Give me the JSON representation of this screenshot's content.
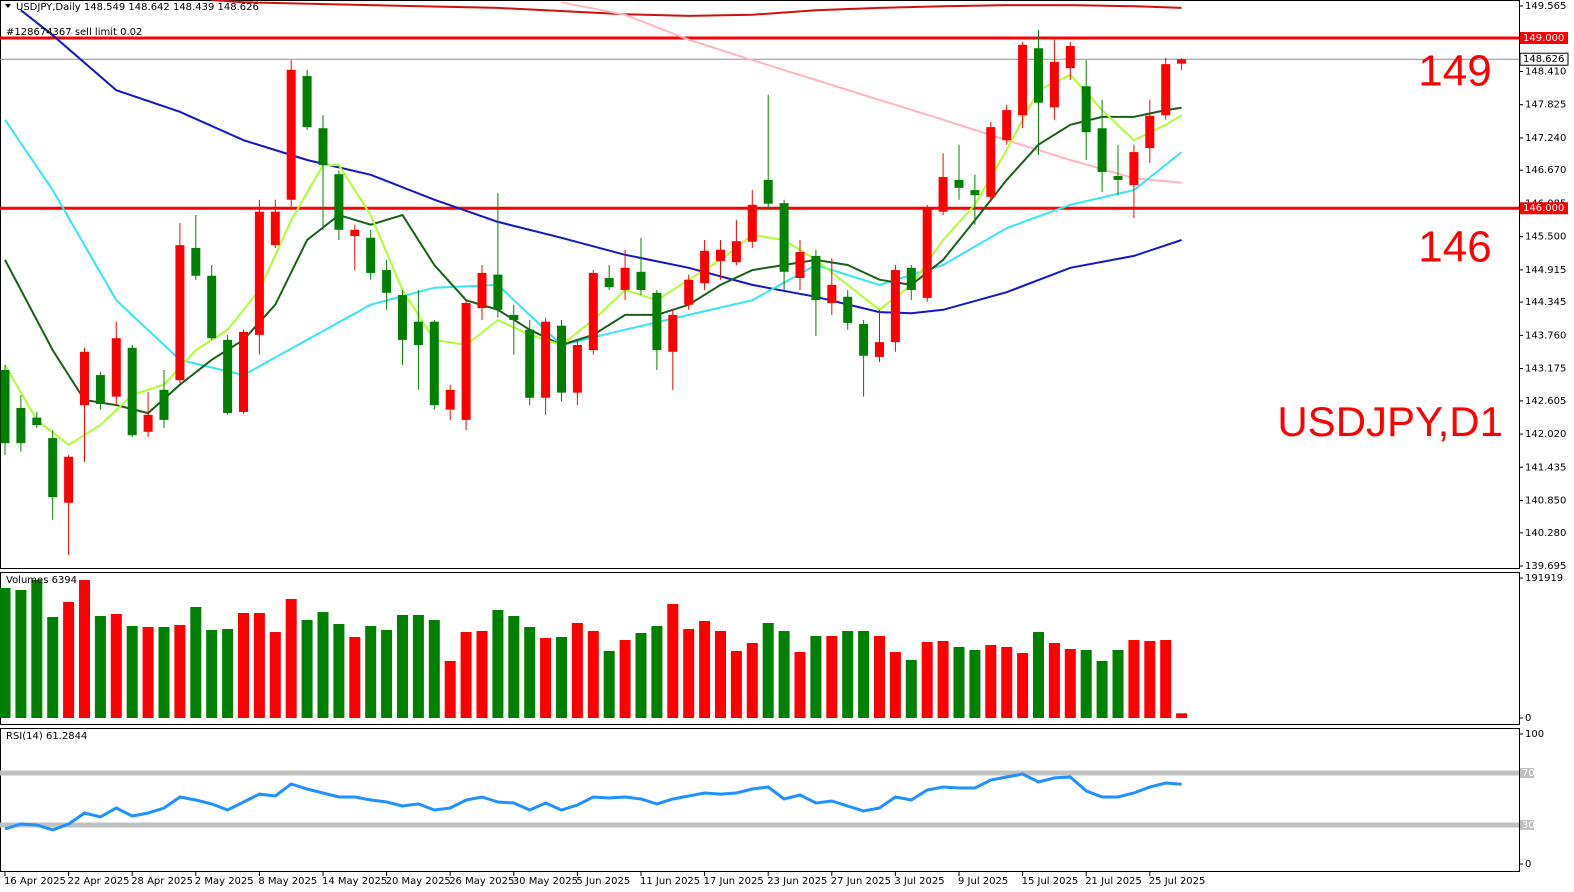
{
  "chart_data": [
    {
      "type": "candlestick",
      "title": "USDJPY,Daily  148.549 148.642 148.439 148.626",
      "order_label": "#128674367 sell limit 0.02",
      "annotations": [
        "149",
        "146",
        "USDJPY,D1"
      ],
      "categories": [
        "16 Apr 2025",
        null,
        null,
        null,
        "22 Apr 2025",
        null,
        null,
        null,
        "28 Apr 2025",
        null,
        null,
        null,
        "2 May 2025",
        null,
        null,
        null,
        "8 May 2025",
        null,
        null,
        null,
        "14 May 2025",
        null,
        null,
        null,
        "20 May 2025",
        null,
        null,
        null,
        "26 May 2025",
        null,
        null,
        null,
        "30 May 2025",
        null,
        null,
        null,
        "5 Jun 2025",
        null,
        null,
        null,
        "11 Jun 2025",
        null,
        null,
        null,
        "17 Jun 2025",
        null,
        null,
        null,
        "23 Jun 2025",
        null,
        null,
        null,
        "27 Jun 2025",
        null,
        null,
        null,
        "3 Jul 2025",
        null,
        null,
        null,
        "9 Jul 2025",
        null,
        null,
        null,
        "15 Jul 2025",
        null,
        null,
        null,
        "21 Jul 2025",
        null,
        null,
        null,
        "25 Jul 2025",
        null,
        null
      ],
      "open": [
        143.15,
        142.48,
        142.31,
        141.95,
        140.81,
        142.53,
        143.06,
        142.68,
        143.54,
        142.06,
        142.8,
        142.97,
        145.3,
        144.81,
        143.68,
        142.41,
        143.77,
        145.35,
        146.15,
        148.33,
        147.41,
        146.6,
        145.51,
        145.48,
        144.91,
        144.47,
        144.0,
        144.0,
        142.45,
        142.27,
        144.24,
        144.83,
        144.12,
        143.86,
        142.66,
        143.93,
        142.75,
        143.5,
        144.77,
        144.56,
        144.88,
        144.51,
        143.47,
        144.3,
        144.68,
        145.07,
        145.05,
        145.41,
        146.5,
        146.09,
        144.77,
        145.16,
        144.33,
        144.44,
        143.96,
        143.38,
        143.64,
        144.95,
        144.42,
        145.94,
        146.5,
        146.32,
        146.2,
        147.2,
        147.64,
        148.82,
        147.78,
        148.47,
        148.15,
        147.41,
        146.57,
        146.41,
        147.06,
        147.64,
        148.549
      ],
      "high": [
        143.24,
        142.71,
        142.41,
        142.09,
        141.65,
        143.54,
        143.12,
        144.0,
        143.59,
        142.76,
        143.15,
        145.74,
        145.88,
        145.0,
        143.77,
        143.86,
        146.15,
        146.15,
        148.61,
        148.44,
        147.64,
        146.67,
        145.71,
        145.62,
        145.09,
        144.56,
        144.56,
        144.03,
        142.89,
        144.38,
        145.0,
        146.27,
        144.3,
        144.03,
        144.07,
        144.03,
        143.68,
        144.91,
        145.0,
        145.27,
        145.48,
        144.56,
        144.21,
        144.83,
        145.44,
        145.44,
        145.79,
        146.32,
        148.0,
        146.15,
        145.44,
        145.27,
        145.12,
        144.56,
        144.03,
        144.21,
        145.0,
        145.0,
        146.06,
        146.97,
        147.12,
        146.59,
        147.52,
        147.82,
        148.93,
        149.14,
        148.97,
        148.93,
        148.61,
        147.91,
        147.12,
        147.12,
        147.91,
        148.65,
        148.642
      ],
      "low": [
        141.65,
        141.71,
        142.13,
        140.51,
        139.89,
        141.53,
        142.45,
        142.53,
        141.97,
        141.97,
        142.13,
        142.92,
        144.74,
        143.68,
        142.36,
        142.38,
        143.42,
        145.3,
        145.97,
        147.38,
        145.62,
        145.44,
        144.91,
        144.74,
        144.21,
        143.24,
        142.8,
        142.45,
        142.27,
        142.09,
        144.03,
        144.07,
        143.42,
        142.53,
        142.36,
        142.59,
        142.53,
        143.42,
        144.56,
        144.38,
        144.47,
        143.15,
        142.8,
        144.21,
        144.56,
        144.74,
        145.0,
        145.3,
        145.97,
        144.56,
        144.56,
        143.75,
        144.12,
        143.86,
        142.68,
        143.29,
        143.47,
        144.38,
        144.35,
        145.88,
        146.15,
        145.71,
        146.11,
        147.12,
        147.41,
        146.94,
        147.56,
        148.26,
        146.85,
        146.29,
        146.23,
        145.83,
        146.8,
        147.56,
        148.439
      ],
      "close": [
        141.86,
        141.86,
        142.18,
        140.91,
        141.62,
        143.47,
        142.55,
        143.71,
        142.0,
        142.36,
        142.27,
        145.35,
        144.81,
        143.71,
        142.39,
        143.82,
        145.94,
        145.94,
        148.44,
        147.43,
        146.76,
        145.62,
        145.62,
        144.86,
        144.51,
        143.68,
        143.59,
        142.53,
        142.8,
        144.33,
        144.86,
        144.21,
        144.03,
        142.66,
        144.0,
        142.75,
        143.59,
        144.86,
        144.61,
        144.95,
        144.56,
        143.5,
        144.12,
        144.74,
        145.25,
        145.27,
        145.42,
        146.06,
        146.08,
        144.88,
        145.23,
        144.38,
        144.65,
        143.98,
        143.4,
        143.64,
        144.91,
        144.56,
        146.02,
        146.55,
        146.36,
        146.23,
        147.43,
        147.73,
        148.88,
        147.86,
        148.58,
        148.86,
        147.34,
        146.64,
        146.5,
        146.99,
        147.63,
        148.54,
        148.626
      ],
      "up_color": "#ff0000",
      "down_color": "#008000",
      "ylim": [
        139.66,
        149.67
      ],
      "yticks": [
        {
          "value": 149.565,
          "label": "149.565"
        },
        {
          "value": 148.41,
          "label": "148.410"
        },
        {
          "value": 147.825,
          "label": "147.825"
        },
        {
          "value": 147.24,
          "label": "147.240"
        },
        {
          "value": 146.67,
          "label": "146.670"
        },
        {
          "value": 146.085,
          "label": "146.085"
        },
        {
          "value": 145.5,
          "label": "145.500"
        },
        {
          "value": 144.915,
          "label": "144.915"
        },
        {
          "value": 144.345,
          "label": "144.345"
        },
        {
          "value": 143.76,
          "label": "143.760"
        },
        {
          "value": 143.175,
          "label": "143.175"
        },
        {
          "value": 142.605,
          "label": "142.605"
        },
        {
          "value": 142.02,
          "label": "142.020"
        },
        {
          "value": 141.435,
          "label": "141.435"
        },
        {
          "value": 140.85,
          "label": "140.850"
        },
        {
          "value": 140.28,
          "label": "140.280"
        },
        {
          "value": 139.695,
          "label": "139.695"
        }
      ],
      "levels": [
        {
          "value": 149,
          "label": "149.000"
        },
        {
          "value": 146,
          "label": "146.000"
        }
      ],
      "level_color": "#ff0000",
      "bid": {
        "value": 148.626,
        "label": "148.626"
      },
      "moving_averages": [
        {
          "color": "#d01010",
          "x": [
            13,
            15,
            23,
            31,
            39,
            43,
            47,
            51,
            55,
            59,
            63,
            67,
            71,
            74
          ],
          "values": [
            149.67,
            149.63,
            149.58,
            149.53,
            149.42,
            149.39,
            149.41,
            149.49,
            149.53,
            149.56,
            149.58,
            149.58,
            149.56,
            149.53
          ]
        },
        {
          "color": "#ffb6c1",
          "x": [
            35,
            39,
            43,
            47,
            51,
            55,
            59,
            63,
            67,
            71,
            74
          ],
          "values": [
            149.63,
            149.41,
            148.97,
            148.61,
            148.26,
            147.91,
            147.56,
            147.2,
            146.85,
            146.53,
            146.45
          ]
        },
        {
          "color": "#1414c8",
          "x": [
            1,
            3,
            7,
            11,
            15,
            19,
            23,
            27,
            31,
            35,
            39,
            43,
            47,
            51,
            55,
            57,
            59,
            63,
            67,
            71,
            74
          ],
          "values": [
            149.49,
            149.05,
            148.08,
            147.7,
            147.2,
            146.85,
            146.59,
            146.15,
            145.76,
            145.48,
            145.18,
            144.95,
            144.65,
            144.44,
            144.17,
            144.15,
            144.21,
            144.52,
            144.95,
            145.16,
            145.44
          ]
        },
        {
          "color": "#33e6f0",
          "x": [
            0,
            3,
            7,
            11,
            15,
            19,
            23,
            27,
            31,
            35,
            39,
            43,
            47,
            51,
            55,
            59,
            63,
            67,
            71,
            74
          ],
          "values": [
            147.56,
            146.32,
            144.38,
            143.33,
            143.06,
            143.68,
            144.3,
            144.6,
            144.65,
            143.59,
            143.86,
            144.12,
            144.38,
            145.0,
            144.65,
            145.0,
            145.65,
            146.06,
            146.32,
            146.99
          ]
        },
        {
          "color": "#1a5e1a",
          "x": [
            0,
            3,
            5,
            7,
            9,
            11,
            13,
            15,
            17,
            19,
            21,
            23,
            25,
            27,
            29,
            31,
            33,
            35,
            37,
            39,
            41,
            43,
            45,
            47,
            49,
            51,
            53,
            55,
            57,
            59,
            61,
            63,
            65,
            67,
            69,
            71,
            73,
            74
          ],
          "values": [
            145.09,
            143.5,
            142.62,
            142.53,
            142.39,
            142.89,
            143.33,
            143.68,
            144.3,
            145.44,
            145.88,
            145.71,
            145.88,
            145.0,
            144.38,
            144.21,
            143.86,
            143.59,
            143.77,
            144.12,
            144.12,
            144.3,
            144.65,
            144.91,
            145.0,
            145.09,
            145.0,
            144.74,
            144.65,
            145.09,
            145.79,
            146.5,
            147.12,
            147.47,
            147.61,
            147.61,
            147.73,
            147.77
          ]
        },
        {
          "color": "#adff2f",
          "x": [
            0,
            2,
            4,
            6,
            8,
            10,
            12,
            14,
            16,
            18,
            20,
            21,
            23,
            25,
            27,
            29,
            31,
            33,
            35,
            37,
            39,
            41,
            43,
            45,
            47,
            49,
            51,
            53,
            55,
            57,
            59,
            61,
            63,
            65,
            67,
            69,
            71,
            73,
            74
          ],
          "values": [
            143.24,
            142.27,
            141.83,
            142.18,
            142.71,
            142.89,
            143.5,
            143.86,
            144.56,
            145.79,
            146.76,
            146.76,
            145.88,
            144.56,
            143.68,
            143.59,
            144.03,
            143.77,
            143.59,
            144.03,
            144.56,
            144.38,
            144.74,
            145.09,
            145.53,
            145.44,
            145.09,
            144.65,
            144.21,
            144.65,
            145.44,
            146.06,
            147.03,
            148.08,
            148.35,
            147.73,
            147.2,
            147.47,
            147.64
          ]
        }
      ]
    },
    {
      "type": "bar",
      "title": "Volumes 6394",
      "values": [
        178230,
        175488,
        189198,
        138471,
        159036,
        189198,
        139842,
        142584,
        126132,
        124761,
        124761,
        127503,
        152181,
        120648,
        122019,
        143955,
        143955,
        117906,
        163149,
        134358,
        145326,
        128874,
        111051,
        126132,
        120648,
        141213,
        141213,
        134358,
        78147,
        117906,
        119277,
        148068,
        139842,
        124761,
        109680,
        111051,
        130245,
        119277,
        91857,
        106938,
        116535,
        126132,
        156294,
        122019,
        132987,
        119277,
        91857,
        102825,
        130245,
        119277,
        90486,
        112422,
        112422,
        119277,
        119277,
        112422,
        90486,
        79518,
        104196,
        105567,
        97341,
        93228,
        100083,
        97341,
        89115,
        117906,
        102825,
        94599,
        93228,
        78147,
        93228,
        106938,
        105567,
        106938,
        6394
      ],
      "ylim": [
        0,
        191919
      ],
      "yticks": [
        0,
        191919
      ]
    },
    {
      "type": "line",
      "title": "RSI(14) 61.2844",
      "values": [
        26.9,
        30.8,
        30,
        26.2,
        30.8,
        39.2,
        36.2,
        43.1,
        36.9,
        39.2,
        43.1,
        51.5,
        49.2,
        46.2,
        41.5,
        47.7,
        53.8,
        52.3,
        61.5,
        57.7,
        54.6,
        51.5,
        51.5,
        49.2,
        47.7,
        44.6,
        46.2,
        41.5,
        43.1,
        49.2,
        51.5,
        47.7,
        46.9,
        41.5,
        46.9,
        41.5,
        45.4,
        51.5,
        50.8,
        51.5,
        50,
        46.2,
        50,
        52.3,
        54.6,
        53.8,
        54.6,
        57.7,
        59.2,
        50,
        53.1,
        46.9,
        48.5,
        44.6,
        40.8,
        43.1,
        51.5,
        49.2,
        56.9,
        59.2,
        58.5,
        58.5,
        64.6,
        66.9,
        69.2,
        63.1,
        66.2,
        66.9,
        56.2,
        51.5,
        51.5,
        54.6,
        59.2,
        62.3,
        61.2844
      ],
      "color": "#1e90ff",
      "ylim": [
        0,
        100
      ],
      "yticks": [
        0,
        100
      ],
      "levels": [
        30,
        70
      ],
      "level_color": "#c0c0c0"
    }
  ]
}
